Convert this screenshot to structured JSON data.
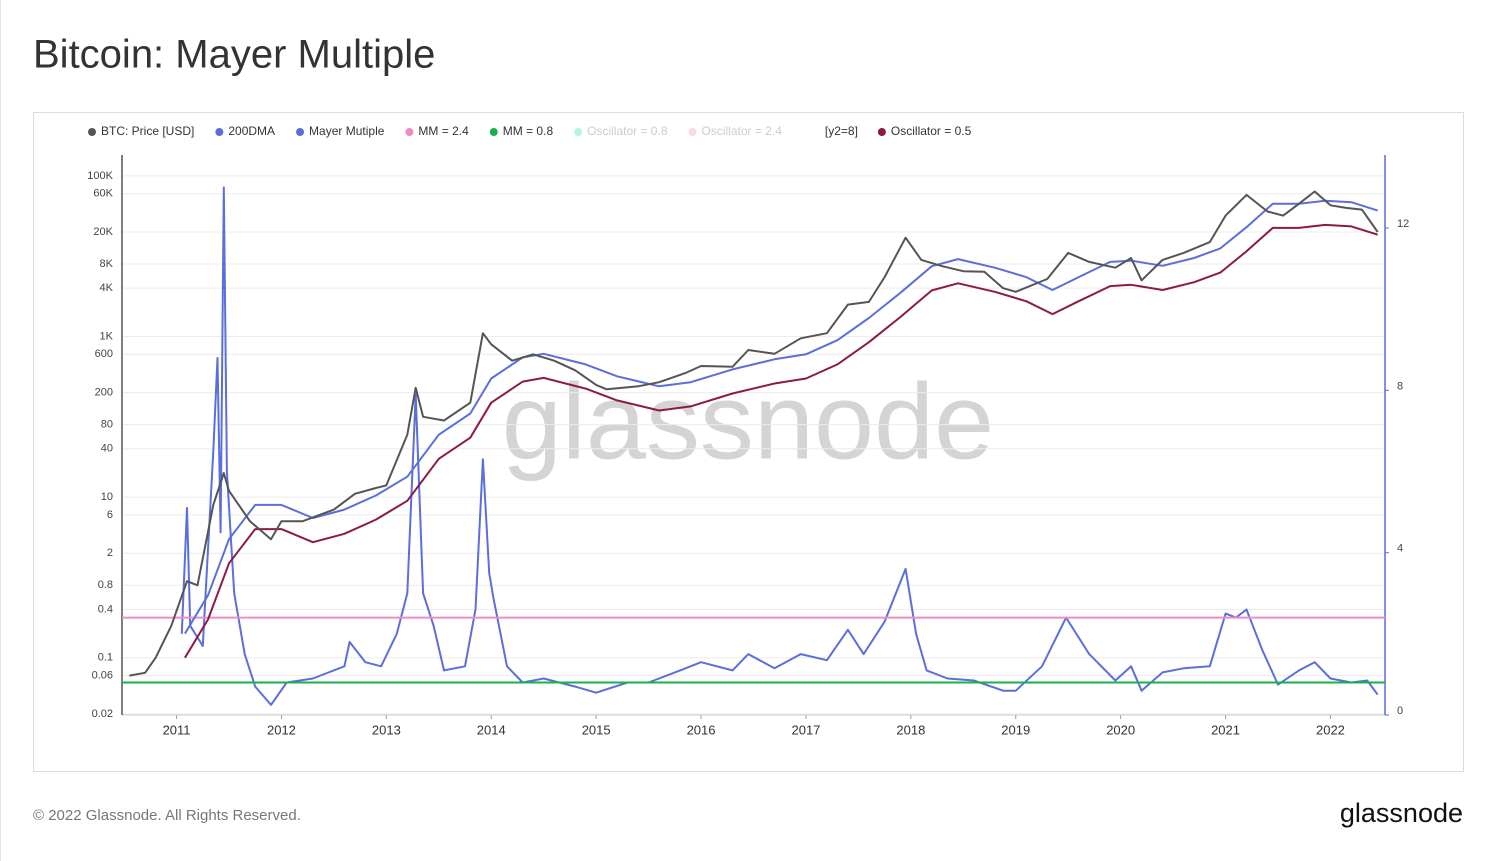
{
  "chart_data": {
    "type": "line",
    "title": "Bitcoin: Mayer Multiple",
    "watermark": "glassnode",
    "legend_note": "[y2=8]",
    "log_y": true,
    "grid": true,
    "xlim": [
      2010.48,
      2022.52
    ],
    "xticks": [
      2011,
      2012,
      2013,
      2014,
      2015,
      2016,
      2017,
      2018,
      2019,
      2020,
      2021,
      2022
    ],
    "ylim": [
      0.0194,
      182000
    ],
    "yticks": [
      0.02,
      0.06,
      0.1,
      0.4,
      0.8,
      2,
      6,
      10,
      40,
      80,
      200,
      600,
      {
        "value": 1000,
        "label": "1K"
      },
      {
        "value": 4000,
        "label": "4K"
      },
      {
        "value": 8000,
        "label": "8K"
      },
      {
        "value": 20000,
        "label": "20K"
      },
      {
        "value": 60000,
        "label": "60K"
      },
      {
        "value": 100000,
        "label": "100K"
      }
    ],
    "y2lim": [
      0,
      13.8
    ],
    "y2ticks": [
      0,
      4,
      8,
      12
    ],
    "series": [
      {
        "name": "BTC: Price [USD]",
        "color": "#555555",
        "x": [
          2010.55,
          2010.7,
          2010.8,
          2010.95,
          2011.1,
          2011.2,
          2011.35,
          2011.45,
          2011.5,
          2011.7,
          2011.9,
          2012.0,
          2012.2,
          2012.5,
          2012.7,
          2012.9,
          2013.0,
          2013.2,
          2013.28,
          2013.35,
          2013.55,
          2013.8,
          2013.92,
          2014.0,
          2014.2,
          2014.4,
          2014.6,
          2014.8,
          2015.0,
          2015.1,
          2015.4,
          2015.6,
          2015.85,
          2016.0,
          2016.3,
          2016.45,
          2016.7,
          2016.95,
          2017.2,
          2017.4,
          2017.6,
          2017.75,
          2017.95,
          2018.1,
          2018.3,
          2018.5,
          2018.7,
          2018.88,
          2019.0,
          2019.3,
          2019.5,
          2019.7,
          2019.95,
          2020.1,
          2020.2,
          2020.4,
          2020.6,
          2020.85,
          2021.0,
          2021.2,
          2021.4,
          2021.55,
          2021.7,
          2021.85,
          2022.0,
          2022.15,
          2022.3,
          2022.45
        ],
        "values": [
          0.06,
          0.065,
          0.1,
          0.25,
          0.9,
          0.8,
          8,
          20,
          12,
          5,
          3,
          5,
          5,
          7,
          11,
          13,
          14,
          60,
          230,
          100,
          90,
          150,
          1100,
          800,
          500,
          600,
          500,
          380,
          250,
          220,
          240,
          270,
          350,
          430,
          420,
          680,
          610,
          950,
          1100,
          2500,
          2700,
          5500,
          17000,
          9000,
          7500,
          6500,
          6400,
          4000,
          3600,
          5200,
          11000,
          8500,
          7200,
          9500,
          5000,
          9000,
          11000,
          15000,
          32000,
          58000,
          36000,
          32000,
          45000,
          64000,
          43000,
          40000,
          38000,
          20000
        ]
      },
      {
        "name": "200DMA",
        "color": "#5b6fdc",
        "x": [
          2011.08,
          2011.3,
          2011.5,
          2011.75,
          2012.0,
          2012.3,
          2012.6,
          2012.9,
          2013.2,
          2013.5,
          2013.8,
          2014.0,
          2014.3,
          2014.5,
          2014.9,
          2015.2,
          2015.6,
          2015.9,
          2016.3,
          2016.7,
          2017.0,
          2017.3,
          2017.6,
          2017.9,
          2018.2,
          2018.45,
          2018.8,
          2019.1,
          2019.35,
          2019.6,
          2019.9,
          2020.1,
          2020.4,
          2020.7,
          2020.95,
          2021.2,
          2021.45,
          2021.7,
          2021.95,
          2022.2,
          2022.45
        ],
        "values": [
          0.2,
          0.6,
          3,
          8,
          8,
          5.5,
          7,
          10.5,
          18,
          60,
          110,
          300,
          550,
          610,
          450,
          320,
          240,
          270,
          390,
          520,
          600,
          900,
          1700,
          3500,
          7500,
          9200,
          7200,
          5500,
          3800,
          5500,
          8500,
          8800,
          7600,
          9500,
          12500,
          23000,
          45000,
          45000,
          49000,
          47000,
          37000
        ]
      },
      {
        "name": "Mayer Mutiple",
        "color": "#5b6fdc",
        "axis": "y2",
        "x": [
          2011.05,
          2011.1,
          2011.13,
          2011.25,
          2011.35,
          2011.39,
          2011.42,
          2011.45,
          2011.48,
          2011.55,
          2011.65,
          2011.75,
          2011.9,
          2012.05,
          2012.3,
          2012.6,
          2012.65,
          2012.8,
          2012.95,
          2013.1,
          2013.2,
          2013.28,
          2013.35,
          2013.45,
          2013.55,
          2013.75,
          2013.85,
          2013.92,
          2013.98,
          2014.02,
          2014.15,
          2014.3,
          2014.5,
          2014.8,
          2015.0,
          2015.3,
          2015.5,
          2015.8,
          2016.0,
          2016.3,
          2016.45,
          2016.7,
          2016.95,
          2017.2,
          2017.4,
          2017.55,
          2017.75,
          2017.95,
          2018.05,
          2018.15,
          2018.35,
          2018.6,
          2018.88,
          2019.0,
          2019.25,
          2019.48,
          2019.7,
          2019.95,
          2020.1,
          2020.2,
          2020.4,
          2020.6,
          2020.85,
          2021.0,
          2021.1,
          2021.2,
          2021.35,
          2021.5,
          2021.7,
          2021.85,
          2022.0,
          2022.2,
          2022.35,
          2022.45
        ],
        "values": [
          2.0,
          5.1,
          2.2,
          1.7,
          6.5,
          8.8,
          4.5,
          13.0,
          6,
          3.0,
          1.5,
          0.7,
          0.25,
          0.8,
          0.9,
          1.2,
          1.8,
          1.3,
          1.2,
          2.0,
          3.0,
          7.9,
          3,
          2.2,
          1.1,
          1.2,
          2.6,
          6.3,
          3.5,
          2.9,
          1.2,
          0.8,
          0.9,
          0.7,
          0.55,
          0.8,
          0.8,
          1.1,
          1.3,
          1.1,
          1.5,
          1.15,
          1.5,
          1.35,
          2.1,
          1.5,
          2.3,
          3.6,
          2.0,
          1.1,
          0.9,
          0.85,
          0.6,
          0.6,
          1.2,
          2.4,
          1.5,
          0.85,
          1.2,
          0.6,
          1.05,
          1.15,
          1.2,
          2.5,
          2.4,
          2.6,
          1.6,
          0.75,
          1.1,
          1.3,
          0.9,
          0.8,
          0.85,
          0.5
        ]
      },
      {
        "name": "MM = 2.4",
        "color": "#f08cc4",
        "axis": "y2",
        "value": 2.4
      },
      {
        "name": "MM = 0.8",
        "color": "#17b24a",
        "axis": "y2",
        "value": 0.8
      },
      {
        "name": "Oscillator = 0.8",
        "color": "#2ee89a",
        "hidden": true
      },
      {
        "name": "Oscillator = 2.4",
        "color": "#f08cc4",
        "hidden": true
      },
      {
        "name": "Oscillator = 0.5",
        "color": "#8b1a4a",
        "x": [
          2011.08,
          2011.3,
          2011.5,
          2011.75,
          2012.0,
          2012.3,
          2012.6,
          2012.9,
          2013.2,
          2013.5,
          2013.8,
          2014.0,
          2014.3,
          2014.5,
          2014.9,
          2015.2,
          2015.6,
          2015.9,
          2016.3,
          2016.7,
          2017.0,
          2017.3,
          2017.6,
          2017.9,
          2018.2,
          2018.45,
          2018.8,
          2019.1,
          2019.35,
          2019.6,
          2019.9,
          2020.1,
          2020.4,
          2020.7,
          2020.95,
          2021.2,
          2021.45,
          2021.7,
          2021.95,
          2022.2,
          2022.45
        ],
        "values": [
          0.1,
          0.3,
          1.5,
          4,
          4,
          2.75,
          3.5,
          5.25,
          9,
          30,
          55,
          150,
          275,
          305,
          225,
          160,
          120,
          135,
          195,
          260,
          300,
          450,
          850,
          1750,
          3750,
          4600,
          3600,
          2750,
          1900,
          2750,
          4250,
          4400,
          3800,
          4750,
          6250,
          11500,
          22500,
          22500,
          24500,
          23500,
          18500
        ]
      }
    ]
  },
  "footer": {
    "copyright": "© 2022 Glassnode. All Rights Reserved.",
    "logo": "glassnode"
  }
}
